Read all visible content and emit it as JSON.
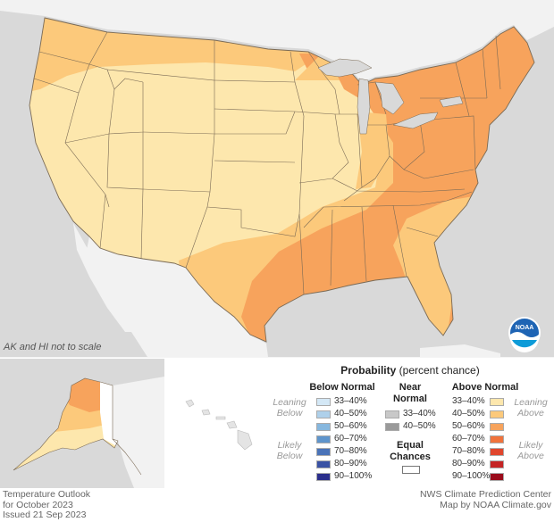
{
  "scale_note": "AK and HI not to scale",
  "footer": {
    "title_line1": "Temperature Outlook",
    "title_line2": "for October 2023",
    "issued": "Issued 21 Sep 2023",
    "source_line1": "NWS Climate Prediction Center",
    "source_line2": "Map by NOAA Climate.gov"
  },
  "logo_text": "NOAA",
  "legend": {
    "title_bold": "Probability",
    "title_rest": "(percent chance)",
    "below_head": "Below Normal",
    "near_head_1": "Near",
    "near_head_2": "Normal",
    "above_head": "Above Normal",
    "leaning_below_1": "Leaning",
    "leaning_below_2": "Below",
    "likely_below_1": "Likely",
    "likely_below_2": "Below",
    "leaning_above_1": "Leaning",
    "leaning_above_2": "Above",
    "likely_above_1": "Likely",
    "likely_above_2": "Above",
    "equal_1": "Equal",
    "equal_2": "Chances",
    "below": [
      {
        "label": "33–40%",
        "color": "#d4e8f6"
      },
      {
        "label": "40–50%",
        "color": "#aed0ea"
      },
      {
        "label": "50–60%",
        "color": "#86b7de"
      },
      {
        "label": "60–70%",
        "color": "#5f95cc"
      },
      {
        "label": "70–80%",
        "color": "#4a73b8"
      },
      {
        "label": "80–90%",
        "color": "#3a52a4"
      },
      {
        "label": "90–100%",
        "color": "#2b2f8c"
      }
    ],
    "near": [
      {
        "label": "33–40%",
        "color": "#c8c8c8"
      },
      {
        "label": "40–50%",
        "color": "#9a9a9a"
      }
    ],
    "above": [
      {
        "label": "33–40%",
        "color": "#fde7ad"
      },
      {
        "label": "40–50%",
        "color": "#fcc97b"
      },
      {
        "label": "50–60%",
        "color": "#f7a35c"
      },
      {
        "label": "60–70%",
        "color": "#f0733c"
      },
      {
        "label": "70–80%",
        "color": "#e0462d"
      },
      {
        "label": "80–90%",
        "color": "#c52424"
      },
      {
        "label": "90–100%",
        "color": "#9a0b1b"
      }
    ],
    "equal_color": "#ffffff"
  },
  "map_colors": {
    "ocean": "#d9d9d9",
    "foreign_land": "#f2f2f2",
    "us_33_40": "#fde7ad",
    "us_40_50": "#fcc97b",
    "us_50_60": "#f7a35c",
    "equal_chances": "#ffffff",
    "state_border": "#7a6a55"
  }
}
